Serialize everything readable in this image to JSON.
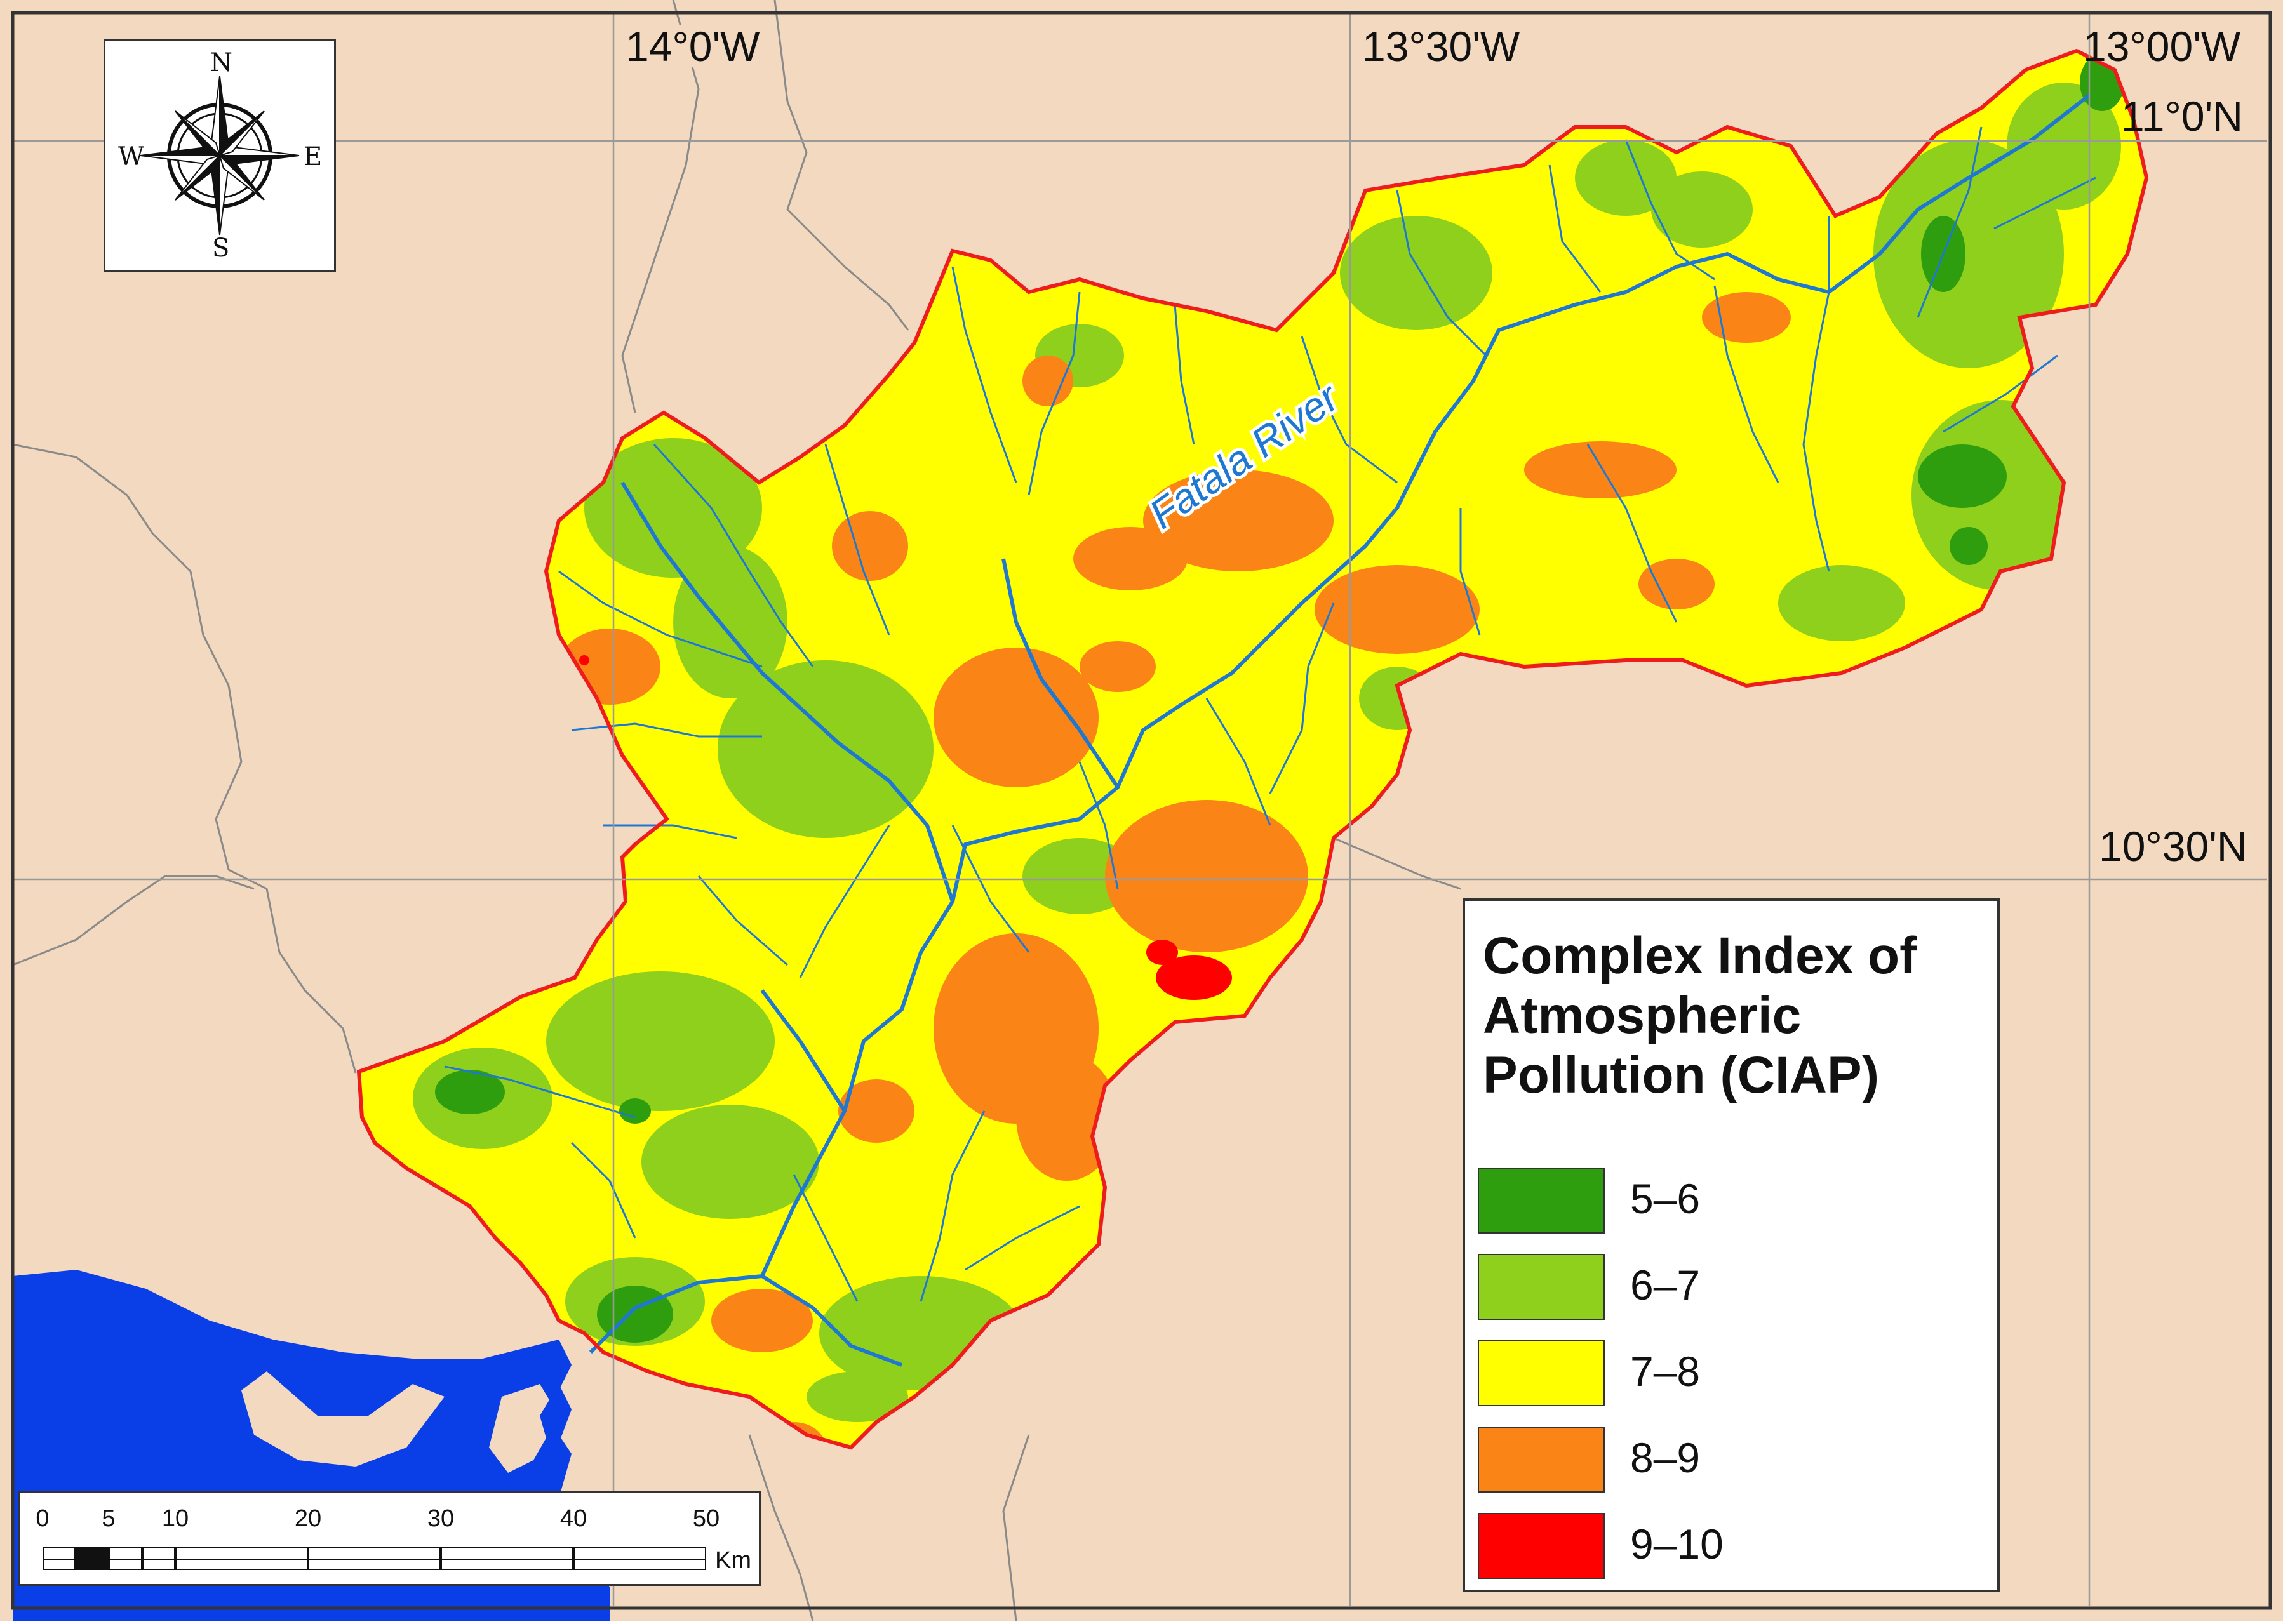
{
  "map": {
    "title": "Complex Index of Atmospheric Pollution (CIAP)",
    "river_label": "Fatala River",
    "colors": {
      "land": "#f3d9bf",
      "sea": "#0a3fe8",
      "boundary": "#ee1c1c",
      "river": "#1e78d2",
      "border": "#8a8a8a",
      "graticule": "#9a9a9a"
    },
    "graticule": {
      "longitudes": [
        "14°0'W",
        "13°30'W",
        "13°00'W"
      ],
      "latitudes": [
        "11°0'N",
        "10°30'N"
      ]
    },
    "compass": {
      "icon": "compass-rose-icon",
      "north": "N",
      "south": "S",
      "east": "E",
      "west": "W"
    }
  },
  "legend": {
    "title_lines": [
      "Complex Index of",
      "Atmospheric",
      "Pollution (CIAP)"
    ],
    "classes": [
      {
        "label": "5–6",
        "color": "#2e9e0f"
      },
      {
        "label": "6–7",
        "color": "#8fd01c"
      },
      {
        "label": "7–8",
        "color": "#ffff00"
      },
      {
        "label": "8–9",
        "color": "#fa8516"
      },
      {
        "label": "9–10",
        "color": "#ff0000"
      }
    ]
  },
  "scale_bar": {
    "ticks": [
      "0",
      "5",
      "10",
      "20",
      "30",
      "40",
      "50"
    ],
    "unit": "Km"
  }
}
